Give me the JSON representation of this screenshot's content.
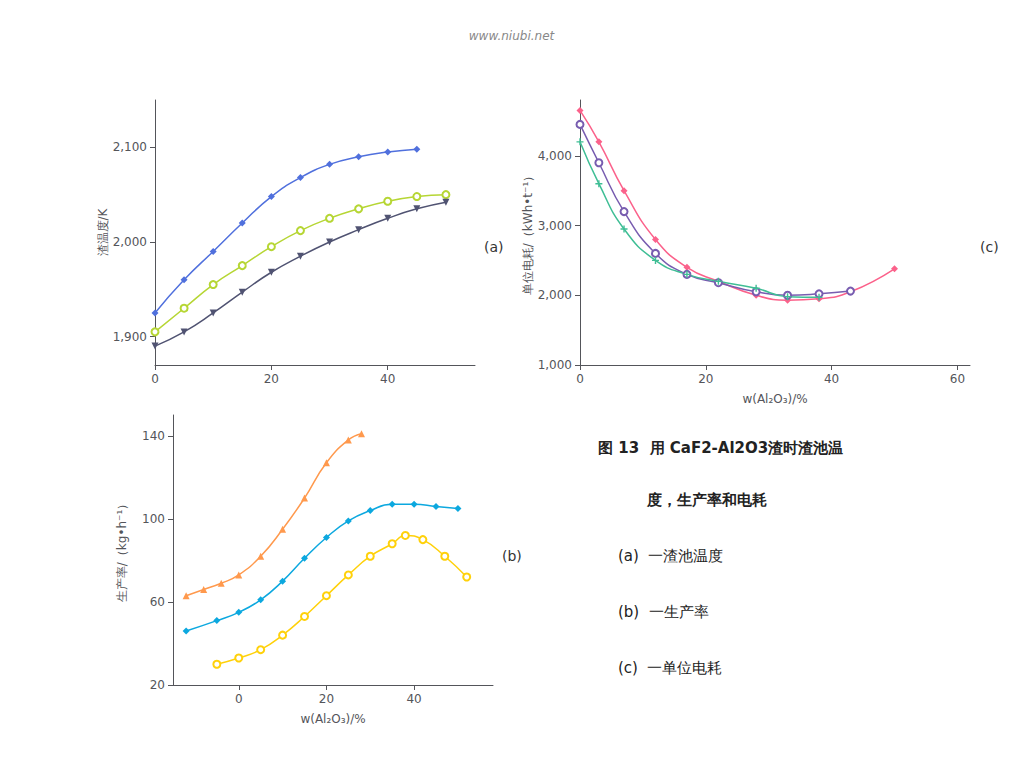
{
  "chart_data": [
    {
      "type": "line",
      "title": "(a)",
      "ylabel": "渣温度/K",
      "xlim": [
        0,
        55
      ],
      "ylim": [
        1870,
        2150
      ],
      "xticks": [
        0,
        20,
        40
      ],
      "yticks": [
        1900,
        2000,
        2100
      ],
      "grid": false,
      "series": [
        {
          "x": [
            0,
            5,
            10,
            15,
            20,
            25,
            30,
            35,
            40,
            45
          ],
          "values": [
            1925,
            1960,
            1990,
            2020,
            2048,
            2068,
            2082,
            2090,
            2095,
            2098
          ],
          "marker": "diamond"
        },
        {
          "x": [
            0,
            5,
            10,
            15,
            20,
            25,
            30,
            35,
            40,
            45,
            50
          ],
          "values": [
            1905,
            1930,
            1955,
            1975,
            1995,
            2012,
            2025,
            2035,
            2043,
            2048,
            2050
          ],
          "marker": "circle_open"
        },
        {
          "x": [
            0,
            5,
            10,
            15,
            20,
            25,
            30,
            35,
            40,
            45,
            50
          ],
          "values": [
            1890,
            1905,
            1925,
            1947,
            1968,
            1985,
            2000,
            2013,
            2025,
            2035,
            2042
          ],
          "marker": "triangle_down"
        }
      ]
    },
    {
      "type": "line",
      "title": "(b)",
      "xlabel": "w(Al₂O₃)/%",
      "ylabel": "生产率/（kg•h⁻¹）",
      "xlim": [
        -15,
        58
      ],
      "ylim": [
        20,
        150
      ],
      "xticks": [
        0,
        20,
        40
      ],
      "yticks": [
        20,
        60,
        100,
        140
      ],
      "grid": false,
      "series": [
        {
          "x": [
            -12,
            -8,
            -4,
            0,
            5,
            10,
            15,
            20,
            25,
            28
          ],
          "values": [
            63,
            66,
            69,
            73,
            82,
            95,
            110,
            127,
            138,
            141
          ],
          "marker": "triangle_up"
        },
        {
          "x": [
            -12,
            -5,
            0,
            5,
            10,
            15,
            20,
            25,
            30,
            35,
            40,
            45,
            50
          ],
          "values": [
            46,
            51,
            55,
            61,
            70,
            81,
            91,
            99,
            104,
            107,
            107,
            106,
            105
          ],
          "marker": "diamond"
        },
        {
          "x": [
            -5,
            0,
            5,
            10,
            15,
            20,
            25,
            30,
            35,
            38,
            42,
            47,
            52
          ],
          "values": [
            30,
            33,
            37,
            44,
            53,
            63,
            73,
            82,
            88,
            92,
            90,
            82,
            72
          ],
          "marker": "circle_open"
        }
      ]
    },
    {
      "type": "line",
      "title": "(c)",
      "xlabel": "w(Al₂O₃)/%",
      "ylabel": "单位电耗/（kWh•t⁻¹）",
      "xlim": [
        0,
        62
      ],
      "ylim": [
        1000,
        4800
      ],
      "xticks": [
        0,
        20,
        40,
        60
      ],
      "yticks": [
        1000,
        2000,
        3000,
        4000
      ],
      "grid": false,
      "series": [
        {
          "x": [
            0,
            3,
            7,
            12,
            17,
            22,
            28,
            33,
            38,
            43,
            50
          ],
          "values": [
            4650,
            4200,
            3500,
            2800,
            2400,
            2200,
            2000,
            1930,
            1950,
            2050,
            2380
          ],
          "marker": "diamond"
        },
        {
          "x": [
            0,
            3,
            7,
            12,
            17,
            22,
            28,
            33,
            38,
            43
          ],
          "values": [
            4450,
            3900,
            3200,
            2600,
            2300,
            2180,
            2050,
            2000,
            2020,
            2060
          ],
          "marker": "circle_open"
        },
        {
          "x": [
            0,
            3,
            7,
            12,
            17,
            22,
            28,
            33,
            38
          ],
          "values": [
            4200,
            3600,
            2950,
            2500,
            2300,
            2200,
            2100,
            1980,
            1970
          ],
          "marker": "plus"
        }
      ]
    }
  ],
  "annotations": [
    "图 13  用 CaF2-Al2O3渣时渣池温",
    "度，生产率和电耗",
    "(a)  一渣池温度",
    "(b)  一生产率",
    "(c)  一单位电耗",
    "www.niubi.net"
  ]
}
